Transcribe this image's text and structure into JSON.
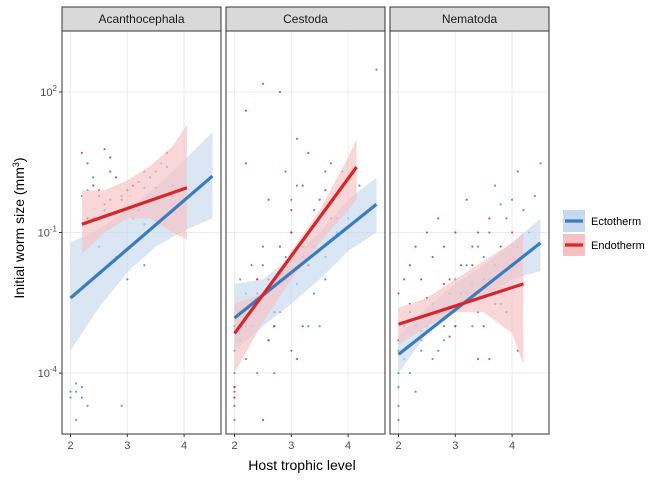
{
  "chart_data": {
    "type": "scatter",
    "xlabel": "Host trophic level",
    "ylabel_prefix": "Initial worm size (",
    "ylabel_unit": "mm",
    "ylabel_exp": "3",
    "ylabel_suffix": ")",
    "y_scale": "log10",
    "ylim": [
      5e-06,
      2000
    ],
    "y_ticks": [
      {
        "value": 0.0001,
        "base": "10",
        "exp": "-4"
      },
      {
        "value": 0.1,
        "base": "10",
        "exp": "-1"
      },
      {
        "value": 100,
        "base": "10",
        "exp": "2"
      }
    ],
    "x_ticks": [
      2,
      3,
      4
    ],
    "xlim": [
      1.85,
      4.65
    ],
    "grid": true,
    "legend": {
      "position": "right",
      "entries": [
        {
          "label": "Ectotherm",
          "color": "#3a7dbf",
          "fill": "#c6d9ee"
        },
        {
          "label": "Endotherm",
          "color": "#d7262b",
          "fill": "#f6c1c3"
        }
      ]
    },
    "panels": [
      {
        "title": "Acanthocephala",
        "series": [
          {
            "name": "Ectotherm",
            "fit": {
              "x": [
                2.0,
                4.5
              ],
              "y": [
                0.004,
                1.6
              ]
            },
            "band": {
              "x": [
                2.0,
                2.5,
                3.0,
                3.5,
                4.0,
                4.5
              ],
              "lower": [
                0.0003,
                0.0025,
                0.014,
                0.05,
                0.11,
                0.2
              ],
              "upper": [
                0.06,
                0.12,
                0.3,
                0.9,
                3.5,
                14
              ]
            },
            "points": {
              "x": [
                2.0,
                2.1,
                2.2,
                2.3,
                2.1,
                2.5,
                2.6,
                2.7,
                2.9,
                3.0,
                3.1,
                3.2,
                3.3,
                3.4,
                3.5,
                3.6,
                3.7,
                3.8,
                2.2,
                2.3,
                2.4,
                2.0,
                2.1,
                2.2,
                2.9,
                3.0,
                3.3,
                3.5,
                3.9,
                4.0,
                2.4,
                2.6,
                2.8,
                3.1,
                3.3
              ],
              "y": [
                3e-05,
                4e-05,
                5e-05,
                2e-05,
                1e-05,
                0.05,
                0.3,
                0.5,
                0.6,
                0.8,
                1.0,
                1.2,
                0.9,
                1.5,
                2.0,
                3.0,
                2.5,
                1.0,
                0.6,
                0.8,
                0.2,
                4e-05,
                6e-05,
                3e-05,
                2e-05,
                0.01,
                0.02,
                0.5,
                0.7,
                0.9,
                1.5,
                0.4,
                0.03,
                0.2,
                0.15
              ]
            }
          },
          {
            "name": "Endotherm",
            "fit": {
              "x": [
                2.2,
                4.05
              ],
              "y": [
                0.15,
                0.9
              ]
            },
            "band": {
              "x": [
                2.2,
                2.6,
                3.0,
                3.4,
                3.8,
                4.05
              ],
              "lower": [
                0.035,
                0.1,
                0.2,
                0.2,
                0.1,
                0.07
              ],
              "upper": [
                0.8,
                0.8,
                1.3,
                2.6,
                7.0,
                20
              ]
            },
            "points": {
              "x": [
                2.2,
                2.3,
                2.4,
                2.5,
                2.6,
                2.7,
                2.8,
                2.9,
                3.0,
                3.1,
                3.2,
                3.3,
                3.5,
                3.7,
                3.8,
                2.3,
                2.5,
                2.7
              ],
              "y": [
                5.0,
                3.0,
                1.0,
                0.6,
                6.0,
                2.0,
                1.5,
                0.5,
                0.8,
                1.0,
                0.3,
                2.0,
                0.9,
                5.0,
                0.6,
                0.2,
                0.8,
                4.0
              ]
            }
          }
        ]
      },
      {
        "title": "Cestoda",
        "series": [
          {
            "name": "Ectotherm",
            "fit": {
              "x": [
                2.0,
                4.5
              ],
              "y": [
                0.0015,
                0.4
              ]
            },
            "band": {
              "x": [
                2.0,
                2.5,
                3.0,
                3.5,
                4.0,
                4.5
              ],
              "lower": [
                0.0003,
                0.001,
                0.003,
                0.01,
                0.04,
                0.1
              ],
              "upper": [
                0.008,
                0.01,
                0.03,
                0.1,
                0.5,
                1.5
              ]
            },
            "points": {
              "x": [
                2.0,
                2.0,
                2.0,
                2.0,
                2.0,
                2.1,
                2.1,
                2.2,
                2.3,
                2.4,
                2.5,
                2.6,
                2.7,
                2.8,
                2.9,
                3.0,
                3.0,
                3.1,
                3.2,
                3.3,
                3.4,
                3.5,
                3.6,
                3.7,
                3.8,
                3.9,
                4.0,
                4.2,
                4.5,
                2.2,
                2.4,
                2.6,
                2.8,
                3.0,
                3.2,
                3.4,
                2.5,
                2.9,
                3.3,
                3.6,
                2.0,
                2.1,
                2.3,
                2.7,
                3.1
              ],
              "y": [
                0.0001,
                0.0003,
                1e-05,
                5e-05,
                0.001,
                0.002,
                0.01,
                0.005,
                0.001,
                0.01,
                0.02,
                0.0005,
                0.001,
                0.01,
                0.03,
                0.1,
                0.5,
                1.0,
                0.05,
                0.02,
                0.3,
                0.001,
                0.01,
                0.2,
                0.1,
                2.0,
                0.2,
                1.0,
                300,
                0.0002,
                0.0001,
                0.005,
                0.002,
                0.0003,
                0.03,
                0.005,
                0.05,
                0.01,
                0.001,
                0.03,
                3e-05,
                0.0005,
                0.002,
                0.0001,
                0.008
              ]
            }
          },
          {
            "name": "Endotherm",
            "fit": {
              "x": [
                2.0,
                4.15
              ],
              "y": [
                0.0007,
                2.5
              ]
            },
            "band": {
              "x": [
                2.0,
                2.5,
                3.0,
                3.5,
                4.0,
                4.15
              ],
              "lower": [
                0.0001,
                0.0012,
                0.01,
                0.06,
                0.3,
                0.5
              ],
              "upper": [
                0.003,
                0.005,
                0.04,
                0.3,
                4.0,
                10
              ]
            },
            "points": {
              "x": [
                2.0,
                2.0,
                2.0,
                2.0,
                2.1,
                2.2,
                2.3,
                2.4,
                2.5,
                2.6,
                2.7,
                2.8,
                2.9,
                3.0,
                3.1,
                3.2,
                3.3,
                3.4,
                3.5,
                3.6,
                3.7,
                3.8,
                4.0,
                2.2,
                2.4,
                2.6,
                2.8,
                3.0,
                3.2,
                2.5,
                2.7,
                3.1,
                3.3,
                2.2,
                2.9,
                3.6,
                2.6
              ],
              "y": [
                3e-05,
                5e-05,
                2e-05,
                4e-05,
                0.0005,
                40.0,
                0.02,
                0.01,
                150,
                0.5,
                0.002,
                0.05,
                2.0,
                0.3,
                10.0,
                1.0,
                5.0,
                0.05,
                0.5,
                2.0,
                3.0,
                0.2,
                1.5,
                0.001,
                0.005,
                0.01,
                100,
                0.1,
                0.001,
                1e-05,
                0.001,
                0.0002,
                0.02,
                3.0,
                0.01,
                0.8,
                0.0005
              ]
            }
          }
        ]
      },
      {
        "title": "Nematoda",
        "series": [
          {
            "name": "Ectotherm",
            "fit": {
              "x": [
                2.0,
                4.5
              ],
              "y": [
                0.00025,
                0.06
              ]
            },
            "band": {
              "x": [
                2.0,
                2.5,
                3.0,
                3.5,
                4.0,
                4.5
              ],
              "lower": [
                0.0001,
                0.0007,
                0.002,
                0.004,
                0.01,
                0.015
              ],
              "upper": [
                0.0006,
                0.0025,
                0.008,
                0.02,
                0.06,
                0.2
              ]
            },
            "points": {
              "x": [
                2.0,
                2.0,
                2.0,
                2.0,
                2.0,
                2.1,
                2.1,
                2.2,
                2.3,
                2.4,
                2.5,
                2.6,
                2.7,
                2.8,
                2.9,
                3.0,
                3.1,
                3.2,
                3.3,
                3.4,
                3.5,
                3.6,
                3.7,
                3.8,
                3.9,
                4.0,
                4.1,
                4.2,
                4.3,
                4.4,
                4.5,
                2.2,
                2.4,
                2.6,
                2.8,
                3.0,
                3.2,
                3.4,
                3.6,
                3.8,
                2.5,
                2.9,
                3.3,
                3.7,
                4.1,
                2.0,
                2.3,
                2.7
              ],
              "y": [
                2e-05,
                5e-05,
                0.0001,
                0.0003,
                0.0005,
                0.0002,
                0.001,
                0.002,
                0.0005,
                0.0008,
                0.001,
                0.003,
                0.002,
                0.001,
                0.005,
                0.01,
                0.003,
                0.02,
                0.008,
                0.05,
                0.03,
                0.1,
                1.0,
                0.4,
                0.2,
                0.5,
                2.0,
                0.3,
                0.1,
                0.6,
                3.0,
                0.0001,
                0.0003,
                0.0002,
                0.0005,
                0.001,
                0.005,
                0.002,
                0.01,
                0.003,
                0.0008,
                0.002,
                0.001,
                0.02,
                0.05,
                1e-05,
                4e-05,
                0.0003
              ]
            }
          },
          {
            "name": "Endotherm",
            "fit": {
              "x": [
                2.0,
                4.2
              ],
              "y": [
                0.0011,
                0.008
              ]
            },
            "band": {
              "x": [
                2.0,
                2.5,
                3.0,
                3.5,
                4.0,
                4.2
              ],
              "lower": [
                0.0004,
                0.001,
                0.002,
                0.002,
                0.0007,
                0.00015
              ],
              "upper": [
                0.0025,
                0.004,
                0.01,
                0.025,
                0.06,
                0.1
              ]
            },
            "points": {
              "x": [
                2.0,
                2.0,
                2.1,
                2.2,
                2.3,
                2.4,
                2.5,
                2.6,
                2.7,
                2.8,
                2.9,
                3.0,
                3.1,
                3.2,
                3.3,
                3.4,
                3.5,
                3.6,
                3.7,
                3.8,
                3.9,
                4.0,
                4.1,
                2.2,
                2.4,
                2.6,
                2.8,
                3.0,
                3.2,
                3.4,
                3.6,
                2.3,
                2.5,
                2.7,
                2.9,
                3.1,
                3.3,
                3.5
              ],
              "y": [
                0.0005,
                0.005,
                0.01,
                0.02,
                0.05,
                0.01,
                0.1,
                0.03,
                0.2,
                0.05,
                0.01,
                0.1,
                0.02,
                0.5,
                0.05,
                0.1,
                0.01,
                0.2,
                0.003,
                0.05,
                0.002,
                0.1,
                0.0003,
                0.003,
                0.0005,
                0.002,
                0.008,
                0.001,
                0.003,
                0.0002,
                0.0002,
                0.001,
                0.004,
                0.002,
                0.0006,
                0.005,
                0.02,
                0.001
              ]
            }
          }
        ]
      }
    ]
  }
}
